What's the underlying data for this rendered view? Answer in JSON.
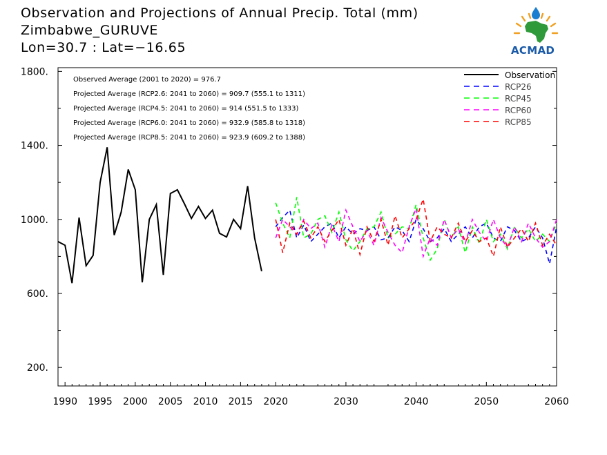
{
  "header": {
    "title": "Observation and Projections of Annual Precip. Total (mm)",
    "location": "Zimbabwe_GURUVE",
    "coords": "Lon=30.7 : Lat=−16.65"
  },
  "logo": {
    "text": "ACMAD"
  },
  "colors": {
    "observation": "#000000",
    "rcp26": "#0000ff",
    "rcp45": "#00ff00",
    "rcp60": "#ff00ff",
    "rcp85": "#ff0000"
  },
  "chart_data": {
    "type": "line",
    "title": "Observation and Projections of Annual Precip. Total (mm)",
    "xlim": [
      1989,
      2060
    ],
    "ylim": [
      100,
      1820
    ],
    "x_ticks": [
      {
        "value": 1990,
        "label": "1990"
      },
      {
        "value": 1995,
        "label": "1995"
      },
      {
        "value": 2000,
        "label": "2000"
      },
      {
        "value": 2005,
        "label": "2005"
      },
      {
        "value": 2010,
        "label": "2010"
      },
      {
        "value": 2015,
        "label": "2015"
      },
      {
        "value": 2020,
        "label": "2020"
      },
      {
        "value": 2030,
        "label": "2030"
      },
      {
        "value": 2040,
        "label": "2040"
      },
      {
        "value": 2050,
        "label": "2050"
      },
      {
        "value": 2060,
        "label": "2060"
      }
    ],
    "y_ticks": [
      {
        "value": 200,
        "label": "200."
      },
      {
        "value": 600,
        "label": "600."
      },
      {
        "value": 1000,
        "label": "1000."
      },
      {
        "value": 1400,
        "label": "1400."
      },
      {
        "value": 1800,
        "label": "1800."
      }
    ],
    "annotations": [
      "Observed Average (2001 to 2020) = 976.7",
      "Projected Average (RCP2.6: 2041 to 2060) = 909.7 (555.1 to 1311)",
      "Projected Average (RCP4.5: 2041 to 2060) = 914 (551.5 to 1333)",
      "Projected Average (RCP6.0: 2041 to 2060) = 932.9 (585.8 to 1318)",
      "Projected Average (RCP8.5: 2041 to 2060) = 923.9 (609.2 to 1388)"
    ],
    "legend_position": "top-right",
    "series": [
      {
        "name": "Observation",
        "style": "solid",
        "x": [
          1989,
          1990,
          1991,
          1992,
          1993,
          1994,
          1995,
          1996,
          1997,
          1998,
          1999,
          2000,
          2001,
          2002,
          2003,
          2004,
          2005,
          2006,
          2007,
          2008,
          2009,
          2010,
          2011,
          2012,
          2013,
          2014,
          2015,
          2016,
          2017,
          2018,
          2019
        ],
        "values": [
          880,
          860,
          655,
          1010,
          750,
          805,
          1200,
          1390,
          915,
          1040,
          1270,
          1160,
          660,
          1000,
          1080,
          700,
          1140,
          1160,
          1085,
          1005,
          1070,
          1005,
          1050,
          925,
          905,
          1000,
          950,
          1180,
          900,
          720,
          null
        ]
      },
      {
        "name": "RCP26",
        "style": "dashed",
        "x": [
          2020,
          2021,
          2022,
          2023,
          2024,
          2025,
          2026,
          2027,
          2028,
          2029,
          2030,
          2031,
          2032,
          2033,
          2034,
          2035,
          2036,
          2037,
          2038,
          2039,
          2040,
          2041,
          2042,
          2043,
          2044,
          2045,
          2046,
          2047,
          2048,
          2049,
          2050,
          2051,
          2052,
          2053,
          2054,
          2055,
          2056,
          2057,
          2058,
          2059,
          2060
        ],
        "values": [
          960,
          1010,
          1050,
          900,
          970,
          880,
          920,
          960,
          980,
          900,
          960,
          920,
          950,
          940,
          960,
          890,
          900,
          960,
          940,
          880,
          1000,
          950,
          880,
          900,
          950,
          880,
          920,
          960,
          900,
          960,
          980,
          900,
          880,
          960,
          940,
          880,
          900,
          960,
          900,
          760,
          960
        ]
      },
      {
        "name": "RCP45",
        "style": "dashed",
        "x": [
          2020,
          2021,
          2022,
          2023,
          2024,
          2025,
          2026,
          2027,
          2028,
          2029,
          2030,
          2031,
          2032,
          2033,
          2034,
          2035,
          2036,
          2037,
          2038,
          2039,
          2040,
          2041,
          2042,
          2043,
          2044,
          2045,
          2046,
          2047,
          2048,
          2049,
          2050,
          2051,
          2052,
          2053,
          2054,
          2055,
          2056,
          2057,
          2058,
          2059,
          2060
        ],
        "values": [
          1090,
          980,
          900,
          1120,
          900,
          920,
          1000,
          1020,
          930,
          1040,
          890,
          830,
          880,
          950,
          960,
          1040,
          900,
          920,
          960,
          950,
          1080,
          900,
          780,
          840,
          1000,
          900,
          960,
          820,
          960,
          870,
          1000,
          880,
          920,
          840,
          960,
          900,
          950,
          880,
          920,
          880,
          980
        ]
      },
      {
        "name": "RCP60",
        "style": "dashed",
        "x": [
          2020,
          2021,
          2022,
          2023,
          2024,
          2025,
          2026,
          2027,
          2028,
          2029,
          2030,
          2031,
          2032,
          2033,
          2034,
          2035,
          2036,
          2037,
          2038,
          2039,
          2040,
          2041,
          2042,
          2043,
          2044,
          2045,
          2046,
          2047,
          2048,
          2049,
          2050,
          2051,
          2052,
          2053,
          2054,
          2055,
          2056,
          2057,
          2058,
          2059,
          2060
        ],
        "values": [
          900,
          1000,
          960,
          920,
          1000,
          950,
          980,
          850,
          970,
          880,
          1050,
          960,
          880,
          940,
          860,
          1010,
          930,
          860,
          820,
          960,
          1060,
          800,
          900,
          860,
          1000,
          900,
          950,
          870,
          1000,
          930,
          880,
          1000,
          900,
          850,
          960,
          880,
          980,
          900,
          850,
          880,
          1000
        ]
      },
      {
        "name": "RCP85",
        "style": "dashed",
        "x": [
          2020,
          2021,
          2022,
          2023,
          2024,
          2025,
          2026,
          2027,
          2028,
          2029,
          2030,
          2031,
          2032,
          2033,
          2034,
          2035,
          2036,
          2037,
          2038,
          2039,
          2040,
          2041,
          2042,
          2043,
          2044,
          2045,
          2046,
          2047,
          2048,
          2049,
          2050,
          2051,
          2052,
          2053,
          2054,
          2055,
          2056,
          2057,
          2058,
          2059,
          2060
        ],
        "values": [
          1000,
          820,
          980,
          920,
          990,
          900,
          960,
          880,
          940,
          1000,
          860,
          950,
          810,
          960,
          880,
          1000,
          860,
          1020,
          900,
          950,
          1000,
          1110,
          880,
          960,
          920,
          900,
          980,
          880,
          940,
          880,
          900,
          800,
          960,
          850,
          900,
          950,
          880,
          980,
          860,
          920,
          860
        ]
      }
    ]
  }
}
